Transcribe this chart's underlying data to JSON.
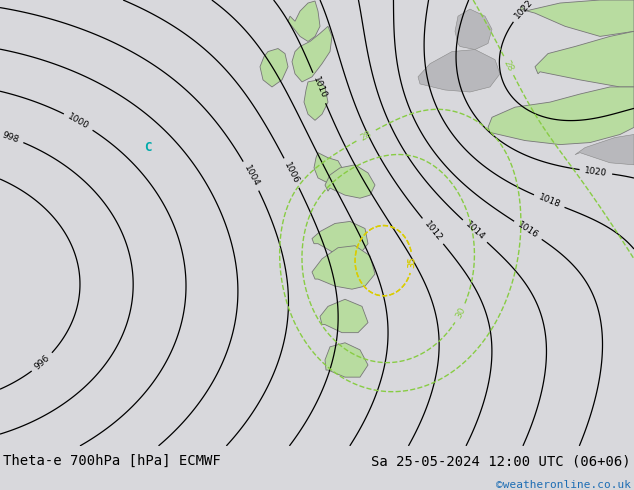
{
  "title_left": "Theta-e 700hPa [hPa] ECMWF",
  "title_right": "Sa 25-05-2024 12:00 UTC (06+06)",
  "watermark": "©weatheronline.co.uk",
  "bg_color": "#d8d8dc",
  "map_bg_color": "#d8d8dc",
  "green_land_color": "#b8dca0",
  "gray_land_color": "#b8b8bc",
  "bottom_bar_color": "#c8c8cc",
  "title_color": "#000000",
  "watermark_color": "#1e6eb4",
  "bottom_bar_height": 0.09,
  "font_size_title": 10,
  "font_size_watermark": 8
}
